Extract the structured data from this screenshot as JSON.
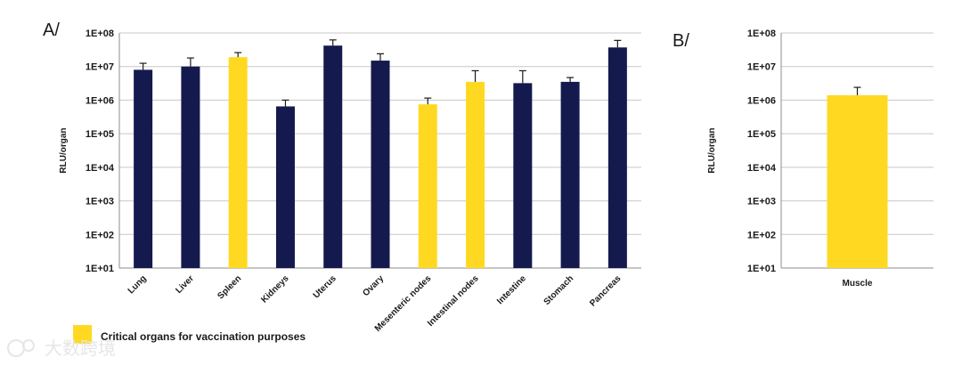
{
  "panels": {
    "a_label": "A/",
    "b_label": "B/"
  },
  "legend": {
    "label": "Critical organs for vaccination purposes",
    "color": "#FFD921"
  },
  "colors": {
    "navy": "#141A4E",
    "yellow": "#FFD921"
  },
  "chart_data": [
    {
      "type": "bar",
      "scale": "log",
      "ylabel": "RLU/organ",
      "ylim": [
        10,
        100000000
      ],
      "yticks": [
        "1E+01",
        "1E+02",
        "1E+03",
        "1E+04",
        "1E+05",
        "1E+06",
        "1E+07",
        "1E+08"
      ],
      "categories": [
        "Lung",
        "Liver",
        "Spleen",
        "Kidneys",
        "Uterus",
        "Ovary",
        "Mesenteric nodes",
        "Intestinal nodes",
        "Intestine",
        "Stomach",
        "Pancreas"
      ],
      "values": [
        8000000,
        10000000,
        19000000,
        650000,
        42000000,
        15000000,
        750000,
        3500000,
        3200000,
        3500000,
        37000000
      ],
      "error_upper": [
        12500000,
        18000000,
        26000000,
        1000000,
        62000000,
        24000000,
        1150000,
        7500000,
        7500000,
        4700000,
        60000000
      ],
      "highlight": [
        false,
        false,
        true,
        false,
        false,
        false,
        true,
        true,
        false,
        false,
        false
      ],
      "grid": true
    },
    {
      "type": "bar",
      "scale": "log",
      "ylabel": "RLU/organ",
      "ylim": [
        10,
        100000000
      ],
      "yticks": [
        "1E+01",
        "1E+02",
        "1E+03",
        "1E+04",
        "1E+05",
        "1E+06",
        "1E+07",
        "1E+08"
      ],
      "categories": [
        "Muscle"
      ],
      "values": [
        1400000
      ],
      "error_upper": [
        2400000
      ],
      "highlight": [
        true
      ],
      "grid": true
    }
  ],
  "watermark": {
    "text": "大数跨境"
  }
}
